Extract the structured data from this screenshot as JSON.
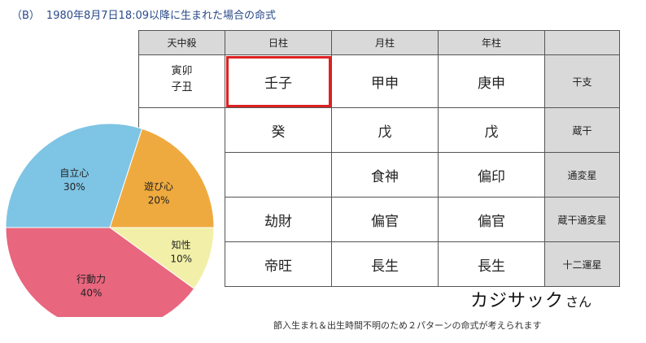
{
  "heading": {
    "label": "（B）",
    "text": "1980年8月7日18:09以降に生まれた場合の命式"
  },
  "table": {
    "headers": [
      "天中殺",
      "日柱",
      "月柱",
      "年柱",
      ""
    ],
    "tenchusatsu": [
      "寅卯",
      "子丑"
    ],
    "rows": [
      {
        "label": "干支",
        "day": "壬子",
        "month": "甲申",
        "year": "庚申"
      },
      {
        "label": "蔵干",
        "day": "癸",
        "month": "戊",
        "year": "戊"
      },
      {
        "label": "通変星",
        "day": "",
        "month": "食神",
        "year": "偏印"
      },
      {
        "label": "蔵干通変星",
        "day": "劫財",
        "month": "偏官",
        "year": "偏官"
      },
      {
        "label": "十二運星",
        "day": "帝旺",
        "month": "長生",
        "year": "長生"
      }
    ]
  },
  "chart_data": {
    "type": "pie",
    "slices": [
      {
        "label": "遊び心",
        "value": 20,
        "value_text": "20%",
        "color": "#efaa3f"
      },
      {
        "label": "知性",
        "value": 10,
        "value_text": "10%",
        "color": "#f2f0a8"
      },
      {
        "label": "行動力",
        "value": 40,
        "value_text": "40%",
        "color": "#e8667e"
      },
      {
        "label": "自立心",
        "value": 30,
        "value_text": "30%",
        "color": "#7ec4e4"
      }
    ]
  },
  "name": {
    "main": "カジサック",
    "honorific": "さん"
  },
  "note": "節入生まれ＆出生時間不明のため２パターンの命式が考えられます",
  "colors": {
    "highlight": "#dd2222",
    "header_bg": "#d9d9d9",
    "heading_text": "#2a4a8a"
  }
}
